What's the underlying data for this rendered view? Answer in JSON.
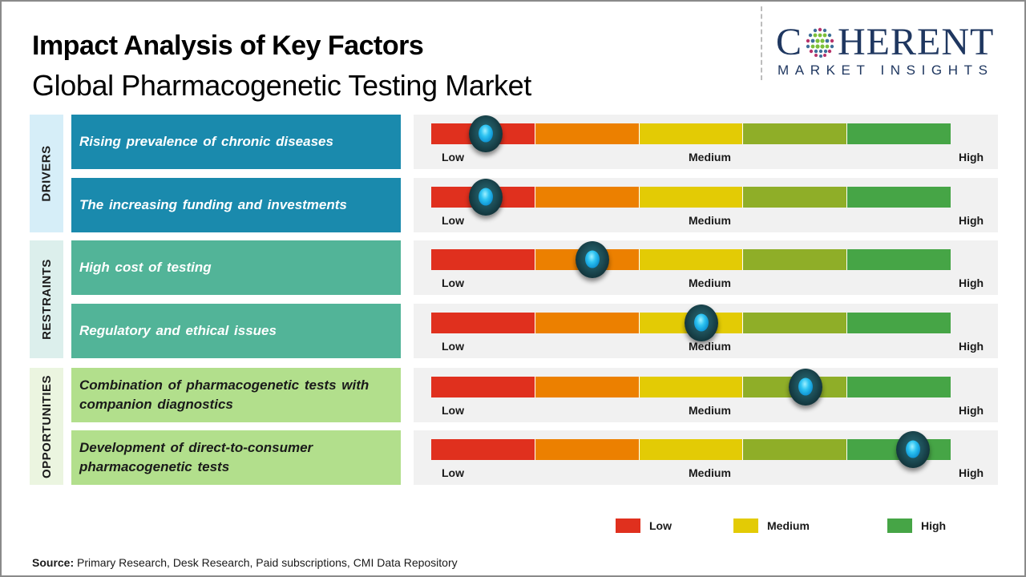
{
  "header": {
    "title": "Impact Analysis of Key Factors",
    "subtitle": "Global Pharmacogenetic Testing Market"
  },
  "logo": {
    "main_left": "C",
    "main_right": "HERENT",
    "sub": "MARKET INSIGHTS",
    "brand_color": "#1f3760",
    "icon": "globe-dots-icon"
  },
  "scale": {
    "labels": {
      "low": "Low",
      "medium": "Medium",
      "high": "High"
    },
    "segment_colors": [
      "#e0301e",
      "#ec8000",
      "#e3cb05",
      "#8fae28",
      "#46a546"
    ]
  },
  "groups": [
    {
      "label": "DRIVERS",
      "label_bg": "#d6eef8",
      "factor_bg": "#1a8aad",
      "factor_text_color": "#ffffff"
    },
    {
      "label": "RESTRAINTS",
      "label_bg": "#dcefec",
      "factor_bg": "#52b498",
      "factor_text_color": "#ffffff"
    },
    {
      "label": "OPPORTUNITIES",
      "label_bg": "#ebf5e0",
      "factor_bg": "#b2df8c",
      "factor_text_color": "#1a1a1a"
    }
  ],
  "factors": [
    {
      "group": "DRIVERS",
      "text": "Rising prevalence of chronic diseases",
      "impact_position": 0.105,
      "impact_level": "Low"
    },
    {
      "group": "DRIVERS",
      "text": "The increasing funding and investments",
      "impact_position": 0.105,
      "impact_level": "Low"
    },
    {
      "group": "RESTRAINTS",
      "text": "High cost of testing",
      "impact_position": 0.31,
      "impact_level": "Low-Medium"
    },
    {
      "group": "RESTRAINTS",
      "text": "Regulatory and ethical issues",
      "impact_position": 0.52,
      "impact_level": "Medium"
    },
    {
      "group": "OPPORTUNITIES",
      "text": "Combination of pharmacogenetic tests with companion diagnostics",
      "impact_position": 0.72,
      "impact_level": "Medium-High"
    },
    {
      "group": "OPPORTUNITIES",
      "text": "Development of direct-to-consumer pharmacogenetic tests",
      "impact_position": 0.927,
      "impact_level": "High"
    }
  ],
  "legend": [
    {
      "label": "Low",
      "color": "#e0301e"
    },
    {
      "label": "Medium",
      "color": "#e3cb05"
    },
    {
      "label": "High",
      "color": "#46a546"
    }
  ],
  "source": {
    "prefix": "Source:",
    "text": " Primary Research, Desk Research, Paid subscriptions, CMI Data Repository"
  },
  "chart_data": {
    "type": "gauge",
    "title": "Impact Analysis of Key Factors",
    "subtitle": "Global Pharmacogenetic Testing Market",
    "scale": [
      "Low",
      "Medium",
      "High"
    ],
    "range": [
      0,
      1
    ],
    "categories": [
      "Rising prevalence of chronic diseases",
      "The increasing funding and investments",
      "High cost of testing",
      "Regulatory and ethical issues",
      "Combination of pharmacogenetic tests with companion diagnostics",
      "Development of direct-to-consumer pharmacogenetic tests"
    ],
    "groups": [
      "DRIVERS",
      "DRIVERS",
      "RESTRAINTS",
      "RESTRAINTS",
      "OPPORTUNITIES",
      "OPPORTUNITIES"
    ],
    "values": [
      0.105,
      0.105,
      0.31,
      0.52,
      0.72,
      0.927
    ],
    "legend": [
      "Low",
      "Medium",
      "High"
    ],
    "legend_position": "bottom-right"
  }
}
